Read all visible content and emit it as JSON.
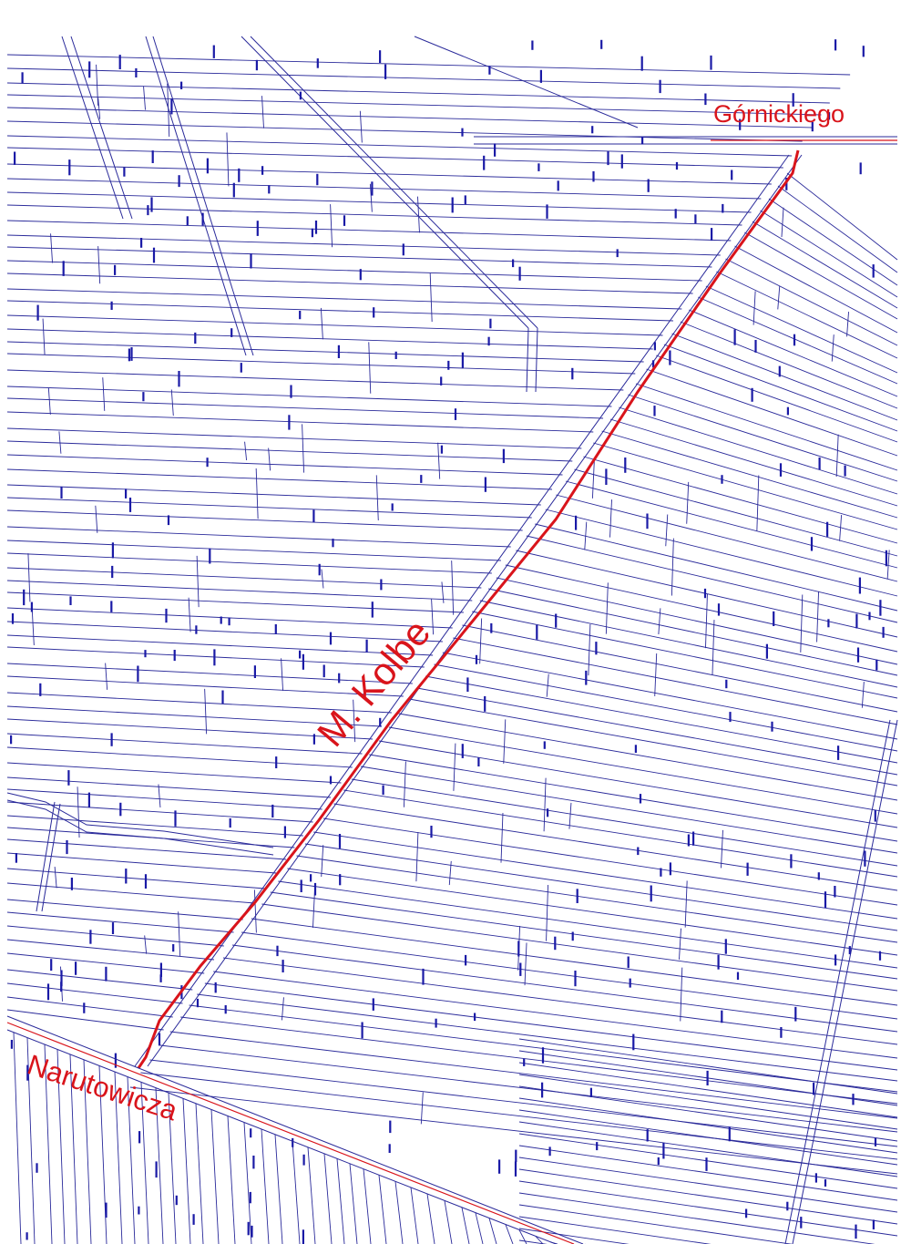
{
  "map": {
    "colors": {
      "parcel_line": "#2a2a9a",
      "parcel_label": "#1a1aa6",
      "street_highlight": "#d9141b",
      "street_label": "#d9141b",
      "background": "#ffffff"
    },
    "streets": {
      "gornickiego": "Górnickiego",
      "kolbe": "M. Kolbe",
      "narutowicza": "Narutowicza"
    }
  }
}
